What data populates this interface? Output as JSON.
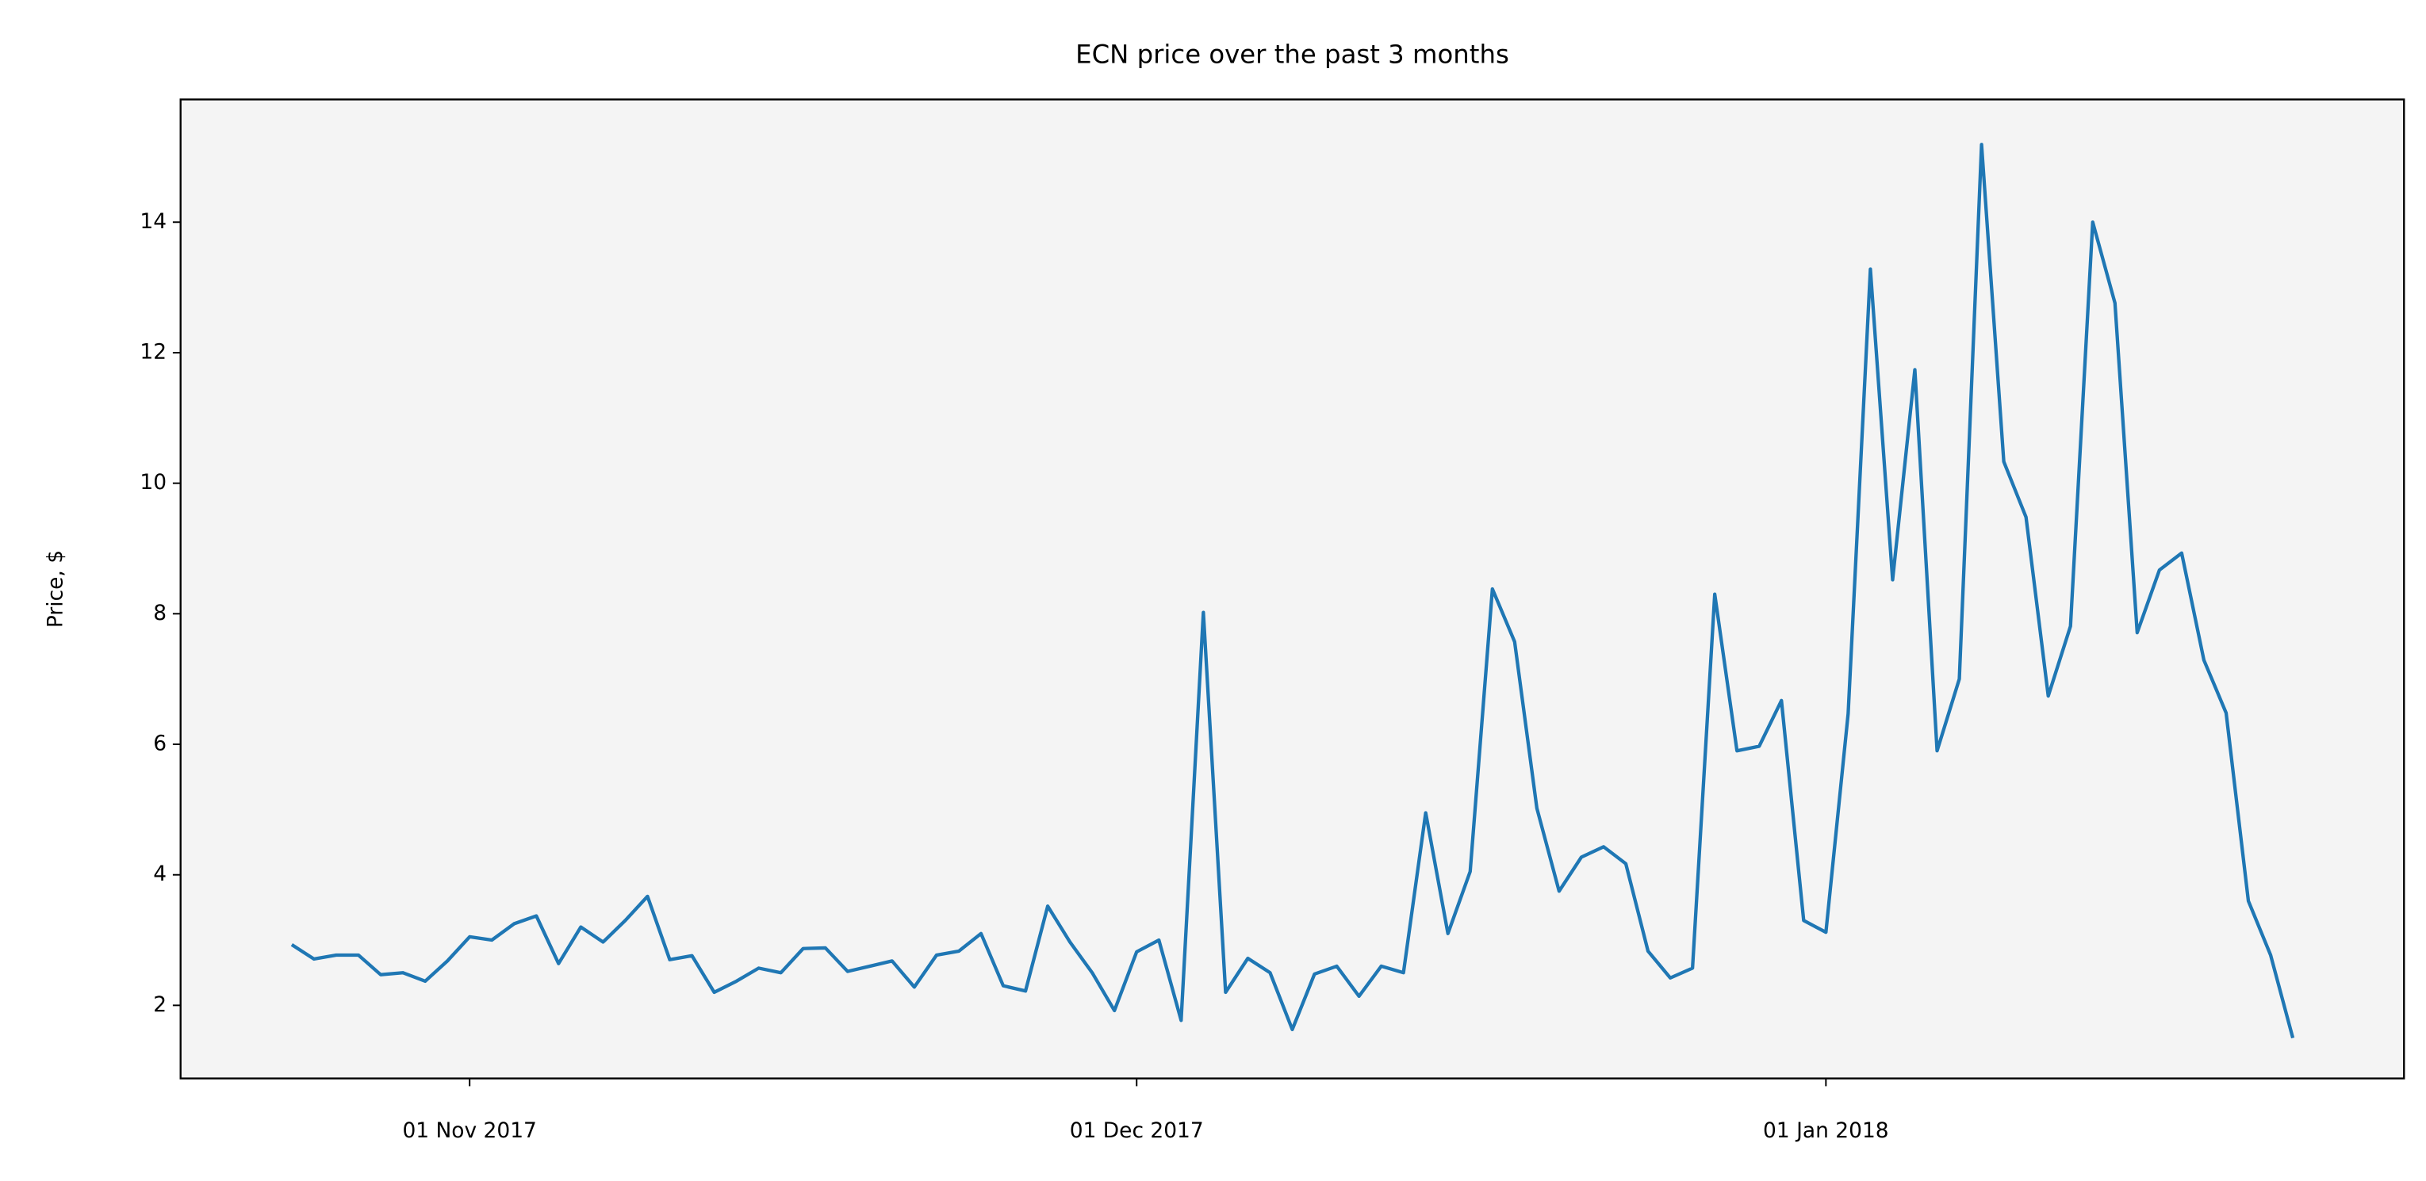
{
  "chart_data": {
    "type": "line",
    "title": "ECN price over the past 3 months",
    "ylabel": "Price, $",
    "x": [
      "2017-10-24",
      "2017-10-25",
      "2017-10-26",
      "2017-10-27",
      "2017-10-28",
      "2017-10-29",
      "2017-10-30",
      "2017-10-31",
      "2017-11-01",
      "2017-11-02",
      "2017-11-03",
      "2017-11-04",
      "2017-11-05",
      "2017-11-06",
      "2017-11-07",
      "2017-11-08",
      "2017-11-09",
      "2017-11-10",
      "2017-11-11",
      "2017-11-12",
      "2017-11-13",
      "2017-11-14",
      "2017-11-15",
      "2017-11-16",
      "2017-11-17",
      "2017-11-18",
      "2017-11-19",
      "2017-11-20",
      "2017-11-21",
      "2017-11-22",
      "2017-11-23",
      "2017-11-24",
      "2017-11-25",
      "2017-11-26",
      "2017-11-27",
      "2017-11-28",
      "2017-11-29",
      "2017-11-30",
      "2017-12-01",
      "2017-12-02",
      "2017-12-03",
      "2017-12-04",
      "2017-12-05",
      "2017-12-06",
      "2017-12-07",
      "2017-12-08",
      "2017-12-09",
      "2017-12-10",
      "2017-12-11",
      "2017-12-12",
      "2017-12-13",
      "2017-12-14",
      "2017-12-15",
      "2017-12-16",
      "2017-12-17",
      "2017-12-18",
      "2017-12-19",
      "2017-12-20",
      "2017-12-21",
      "2017-12-22",
      "2017-12-23",
      "2017-12-24",
      "2017-12-25",
      "2017-12-26",
      "2017-12-27",
      "2017-12-28",
      "2017-12-29",
      "2017-12-30",
      "2017-12-31",
      "2018-01-01",
      "2018-01-02",
      "2018-01-03",
      "2018-01-04",
      "2018-01-05",
      "2018-01-06",
      "2018-01-07",
      "2018-01-08",
      "2018-01-09",
      "2018-01-10",
      "2018-01-11",
      "2018-01-12",
      "2018-01-13",
      "2018-01-14",
      "2018-01-15",
      "2018-01-16",
      "2018-01-17",
      "2018-01-18",
      "2018-01-19",
      "2018-01-20",
      "2018-01-21",
      "2018-01-22"
    ],
    "values": [
      2.93,
      2.71,
      2.77,
      2.77,
      2.47,
      2.5,
      2.37,
      2.68,
      3.05,
      3.0,
      3.25,
      3.37,
      2.64,
      3.2,
      2.97,
      3.3,
      3.67,
      2.7,
      2.76,
      2.2,
      2.37,
      2.57,
      2.5,
      2.87,
      2.88,
      2.52,
      2.6,
      2.68,
      2.28,
      2.77,
      2.83,
      3.1,
      2.3,
      2.22,
      3.52,
      2.97,
      2.5,
      1.92,
      2.82,
      3.0,
      1.77,
      8.02,
      2.2,
      2.72,
      2.5,
      1.63,
      2.48,
      2.6,
      2.14,
      2.6,
      2.5,
      4.95,
      3.1,
      4.05,
      8.38,
      7.57,
      5.02,
      3.75,
      4.27,
      4.43,
      4.17,
      2.83,
      2.42,
      2.57,
      8.3,
      5.9,
      5.97,
      6.67,
      3.3,
      3.12,
      6.47,
      13.28,
      8.52,
      11.74,
      5.9,
      7.0,
      15.19,
      10.33,
      9.48,
      6.74,
      7.81,
      14.0,
      12.76,
      7.71,
      8.67,
      8.93,
      7.29,
      6.48,
      3.6,
      2.77,
      1.5
    ],
    "color": "#1f77b4",
    "xlim": [
      "2017-10-19",
      "2018-01-27"
    ],
    "xticks": [
      {
        "value": "2017-11-01",
        "label": "01 Nov 2017"
      },
      {
        "value": "2017-12-01",
        "label": "01 Dec 2017"
      },
      {
        "value": "2018-01-01",
        "label": "01 Jan 2018"
      }
    ],
    "ylim": [
      0.88,
      15.88
    ],
    "yticks": [
      2,
      4,
      6,
      8,
      10,
      12,
      14
    ]
  }
}
